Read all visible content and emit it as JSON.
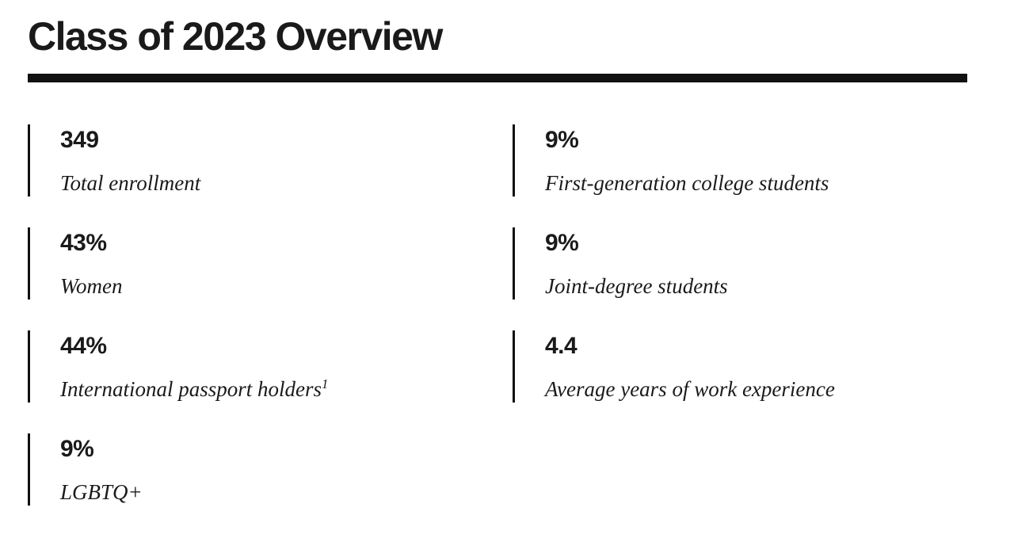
{
  "page": {
    "title": "Class of 2023 Overview"
  },
  "stats": {
    "left": [
      {
        "value": "349",
        "label": "Total enrollment"
      },
      {
        "value": "43%",
        "label": "Women"
      },
      {
        "value": "44%",
        "label": "International passport holders",
        "superscript": "1"
      },
      {
        "value": "9%",
        "label": "LGBTQ+"
      }
    ],
    "right": [
      {
        "value": "9%",
        "label": "First-generation college students"
      },
      {
        "value": "9%",
        "label": "Joint-degree students"
      },
      {
        "value": "4.4",
        "label": "Average years of work experience"
      }
    ]
  },
  "colors": {
    "text": "#1a1a1a",
    "rule": "#111111",
    "background": "#ffffff"
  }
}
